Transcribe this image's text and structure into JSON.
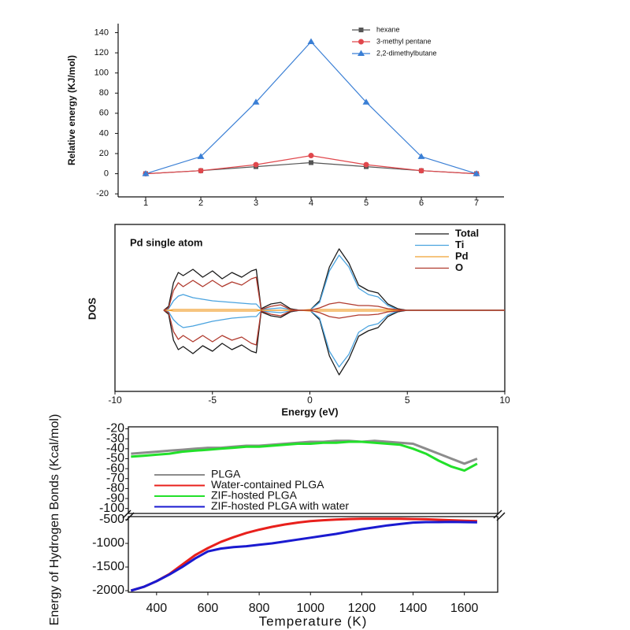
{
  "chart_data": [
    {
      "type": "line",
      "y_label": "Relative energy (KJ/mol)",
      "x": [
        1,
        2,
        3,
        4,
        5,
        6,
        7
      ],
      "xlim": [
        0.5,
        7.5
      ],
      "xticks": [
        1,
        2,
        3,
        4,
        5,
        6,
        7
      ],
      "ylim": [
        -23,
        149
      ],
      "yticks": [
        -20,
        0,
        20,
        40,
        60,
        80,
        100,
        120,
        140
      ],
      "legend": "upper right",
      "series": [
        {
          "name": "hexane",
          "color": "#555555",
          "marker": "square",
          "values": [
            0,
            3,
            7,
            11,
            7,
            3,
            0
          ]
        },
        {
          "name": "3-methyl pentane",
          "color": "#e0474c",
          "marker": "circle",
          "values": [
            0,
            3,
            9,
            18,
            9,
            3,
            0
          ]
        },
        {
          "name": "2,2-dimethylbutane",
          "color": "#3a7fd5",
          "marker": "triangle",
          "values": [
            0,
            17,
            71,
            131,
            71,
            17,
            0
          ]
        }
      ]
    },
    {
      "type": "line",
      "annotation": "Pd single atom",
      "x_label": "Energy (eV)",
      "y_label": "DOS",
      "x": [
        -7.5,
        -7.25,
        -7,
        -6.75,
        -6.5,
        -6,
        -5.5,
        -5,
        -4.5,
        -4,
        -3.5,
        -3,
        -2.75,
        -2.5,
        -2,
        -1.5,
        -1,
        -0.5,
        0,
        0.5,
        1,
        1.5,
        2,
        2.5,
        3,
        3.5,
        4,
        4.5,
        5,
        6,
        10
      ],
      "xlim": [
        -10,
        10
      ],
      "xticks": [
        -10,
        -5,
        0,
        5,
        10
      ],
      "ylim": [
        -103,
        109
      ],
      "yticks": [],
      "legend": "upper right",
      "series": [
        {
          "name": "Total",
          "color": "#1a1a1a",
          "values": [
            0,
            5,
            35,
            48,
            44,
            52,
            42,
            50,
            40,
            48,
            42,
            50,
            52,
            2,
            8,
            10,
            2,
            0,
            0,
            12,
            55,
            78,
            60,
            32,
            25,
            22,
            8,
            2,
            0,
            0,
            0
          ],
          "down_values": [
            0,
            -5,
            -38,
            -50,
            -46,
            -55,
            -45,
            -52,
            -42,
            -50,
            -44,
            -52,
            -54,
            -2,
            -7,
            -9,
            -2,
            0,
            0,
            -12,
            -58,
            -82,
            -62,
            -33,
            -26,
            -22,
            -8,
            -2,
            0,
            0,
            0
          ]
        },
        {
          "name": "Ti",
          "color": "#4aa3df",
          "values": [
            0,
            2,
            12,
            18,
            20,
            16,
            14,
            12,
            11,
            10,
            9,
            8,
            8,
            1,
            2,
            3,
            1,
            0,
            0,
            10,
            50,
            70,
            55,
            28,
            20,
            17,
            6,
            1,
            0,
            0,
            0
          ],
          "down_values": [
            0,
            -2,
            -12,
            -18,
            -22,
            -20,
            -17,
            -14,
            -12,
            -10,
            -9,
            -8,
            -8,
            -1,
            -2,
            -3,
            -1,
            0,
            0,
            -10,
            -52,
            -72,
            -56,
            -28,
            -20,
            -17,
            -6,
            -1,
            0,
            0,
            0
          ]
        },
        {
          "name": "Pd",
          "color": "#f0a030",
          "values": [
            0,
            0,
            1,
            1,
            1,
            1,
            1,
            1,
            1,
            1,
            1,
            1,
            1,
            0,
            0,
            0,
            0,
            0,
            1,
            1,
            1,
            1,
            1,
            1,
            1,
            1,
            1,
            0,
            0,
            0,
            0
          ],
          "down_values": [
            0,
            0,
            -1,
            -1,
            -1,
            -1,
            -1,
            -1,
            -1,
            -1,
            -1,
            -1,
            -1,
            0,
            0,
            0,
            0,
            0,
            -1,
            -1,
            -1,
            -1,
            -1,
            -1,
            -1,
            -1,
            -1,
            0,
            0,
            0,
            0
          ]
        },
        {
          "name": "O",
          "color": "#b03a2e",
          "values": [
            0,
            3,
            25,
            35,
            30,
            38,
            30,
            38,
            30,
            36,
            32,
            40,
            42,
            1,
            5,
            7,
            1,
            0,
            0,
            3,
            8,
            10,
            8,
            6,
            6,
            5,
            2,
            1,
            0,
            0,
            0
          ],
          "down_values": [
            0,
            -3,
            -27,
            -37,
            -32,
            -40,
            -32,
            -40,
            -32,
            -38,
            -34,
            -42,
            -44,
            -1,
            -5,
            -7,
            -1,
            0,
            0,
            -3,
            -8,
            -10,
            -8,
            -6,
            -6,
            -5,
            -2,
            -1,
            0,
            0,
            0
          ]
        }
      ]
    },
    {
      "type": "line",
      "x_label": "Temperature (K)",
      "y_label": "Energy of Hydrogen Bonds (Kcal/mol)",
      "x": [
        300,
        350,
        400,
        450,
        500,
        550,
        600,
        650,
        700,
        750,
        800,
        850,
        900,
        950,
        1000,
        1050,
        1100,
        1150,
        1200,
        1250,
        1300,
        1350,
        1400,
        1450,
        1500,
        1550,
        1600,
        1650
      ],
      "xlim": [
        290,
        1730
      ],
      "xticks": [
        400,
        600,
        800,
        1000,
        1200,
        1400,
        1600
      ],
      "panels": [
        {
          "ylim": [
            -105,
            -18
          ],
          "yticks": [
            -20,
            -30,
            -40,
            -50,
            -60,
            -70,
            -80,
            -90,
            -100
          ]
        },
        {
          "ylim": [
            -2033,
            -433
          ],
          "yticks": [
            -500,
            -1000,
            -1500,
            -2000
          ]
        }
      ],
      "legend": "lower left",
      "series": [
        {
          "name": "PLGA",
          "color": "#8c8c8c",
          "panel": 0,
          "values": [
            -45,
            -44,
            -43,
            -42,
            -41,
            -40,
            -39,
            -39,
            -38,
            -37,
            -37,
            -36,
            -35,
            -34,
            -33,
            -33,
            -32,
            -32,
            -33,
            -32,
            -33,
            -34,
            -35,
            -40,
            -45,
            -50,
            -55,
            -50
          ]
        },
        {
          "name": "Water-contained PLGA",
          "color": "#e8201c",
          "panel": 1,
          "values": [
            -2000,
            -1920,
            -1800,
            -1650,
            -1450,
            -1250,
            -1100,
            -970,
            -870,
            -780,
            -710,
            -650,
            -600,
            -560,
            -530,
            -510,
            -495,
            -485,
            -480,
            -478,
            -478,
            -480,
            -485,
            -490,
            -500,
            -510,
            -520,
            -530
          ]
        },
        {
          "name": "ZIF-hosted PLGA",
          "color": "#22e02a",
          "panel": 0,
          "values": [
            -48,
            -47,
            -46,
            -45,
            -43,
            -42,
            -41,
            -40,
            -39,
            -38,
            -38,
            -37,
            -36,
            -35,
            -35,
            -34,
            -34,
            -33,
            -33,
            -34,
            -35,
            -36,
            -40,
            -45,
            -52,
            -58,
            -62,
            -55
          ]
        },
        {
          "name": "ZIF-hosted PLGA with water",
          "color": "#1a1ad0",
          "panel": 1,
          "values": [
            -2000,
            -1920,
            -1800,
            -1660,
            -1500,
            -1320,
            -1170,
            -1110,
            -1080,
            -1060,
            -1030,
            -1000,
            -960,
            -920,
            -880,
            -840,
            -800,
            -750,
            -700,
            -660,
            -620,
            -590,
            -560,
            -550,
            -550,
            -545,
            -550,
            -555
          ]
        }
      ]
    }
  ]
}
